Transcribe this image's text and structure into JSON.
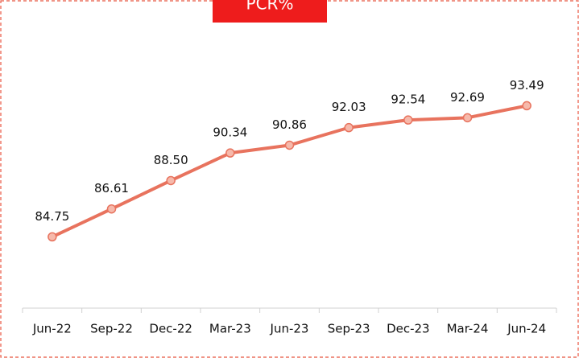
{
  "chart_data": {
    "type": "line",
    "title": "PCR%",
    "categories": [
      "Jun-22",
      "Sep-22",
      "Dec-22",
      "Mar-23",
      "Jun-23",
      "Sep-23",
      "Dec-23",
      "Mar-24",
      "Jun-24"
    ],
    "values": [
      84.75,
      86.61,
      88.5,
      90.34,
      90.86,
      92.03,
      92.54,
      92.69,
      93.49
    ],
    "value_labels": [
      "84.75",
      "86.61",
      "88.50",
      "90.34",
      "90.86",
      "92.03",
      "92.54",
      "92.69",
      "93.49"
    ],
    "color": "#e8735e",
    "marker_color": "#f6b9ab",
    "ylim": [
      80,
      100
    ],
    "grid": false
  }
}
